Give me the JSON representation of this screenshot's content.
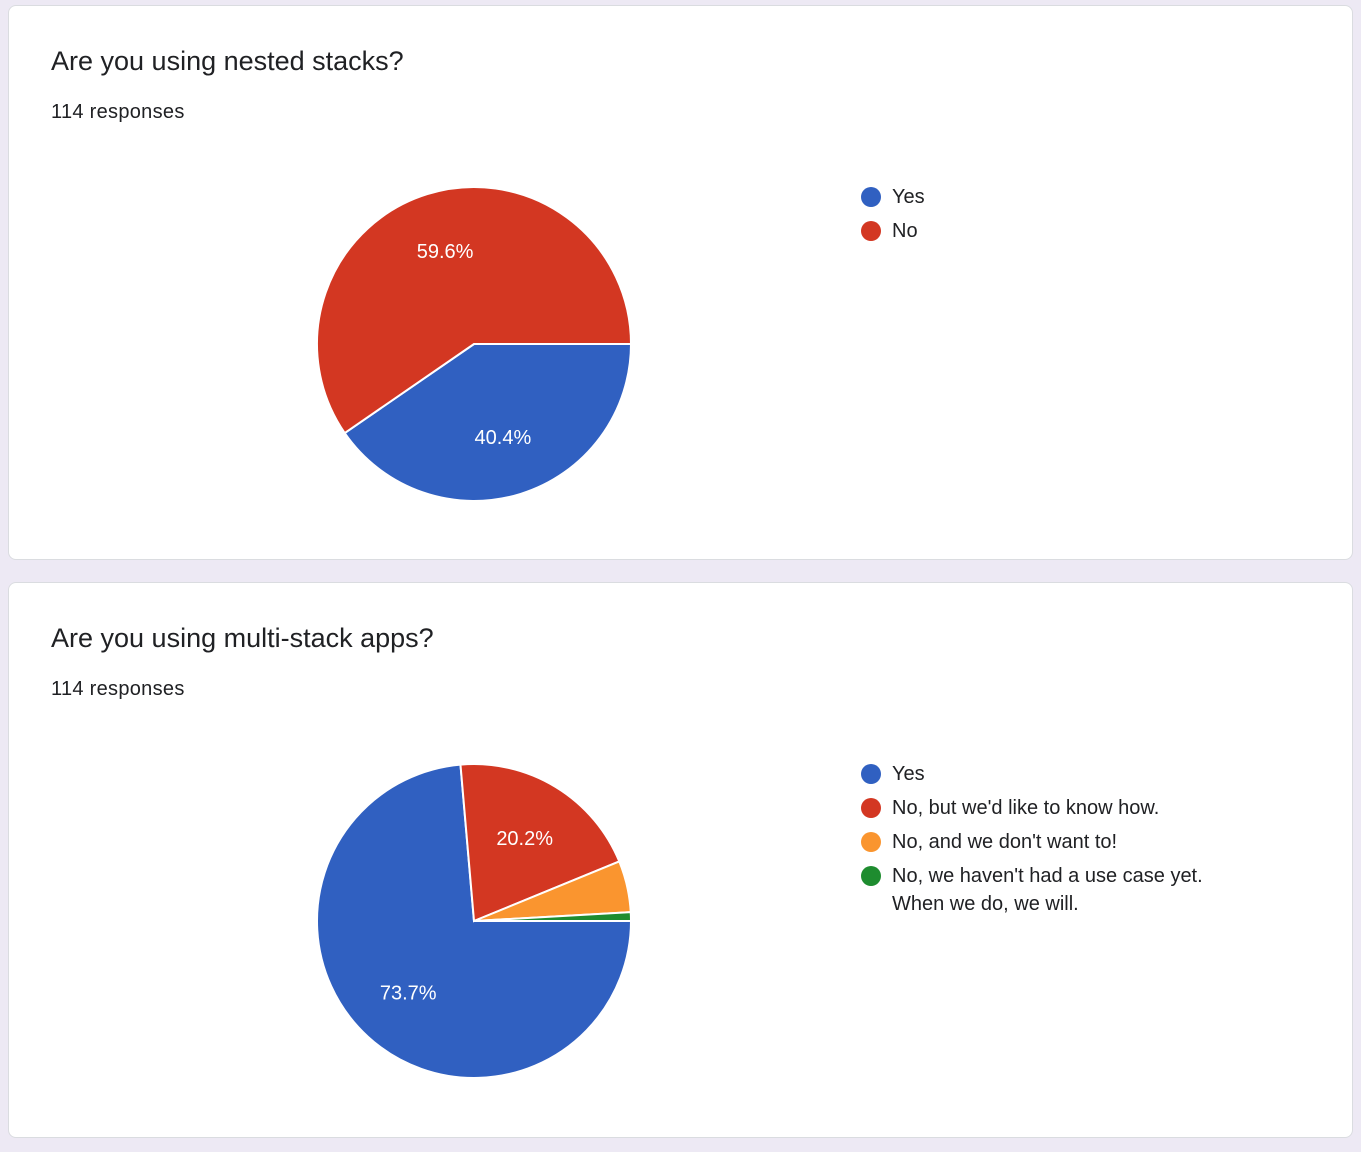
{
  "charts": [
    {
      "question": "Are you using nested stacks?",
      "responses": "114 responses",
      "chart_data": {
        "type": "pie",
        "title": "Are you using nested stacks?",
        "labels": [
          "Yes",
          "No"
        ],
        "values": [
          40.4,
          59.6
        ],
        "value_labels": [
          "40.4%",
          "59.6%"
        ],
        "colors": [
          "#3060c1",
          "#d33722"
        ],
        "legend_position": "right"
      }
    },
    {
      "question": "Are you using multi-stack apps?",
      "responses": "114 responses",
      "chart_data": {
        "type": "pie",
        "title": "Are you using multi-stack apps?",
        "labels": [
          "Yes",
          "No, but we'd like to know how.",
          "No, and we don't want to!",
          "No, we haven't had a use case yet. When we do, we will."
        ],
        "values": [
          73.7,
          20.2,
          5.3,
          0.9
        ],
        "value_labels": [
          "73.7%",
          "20.2%",
          "",
          ""
        ],
        "colors": [
          "#3060c1",
          "#d33722",
          "#fa952f",
          "#1e8c2f"
        ],
        "legend_position": "right"
      }
    }
  ]
}
